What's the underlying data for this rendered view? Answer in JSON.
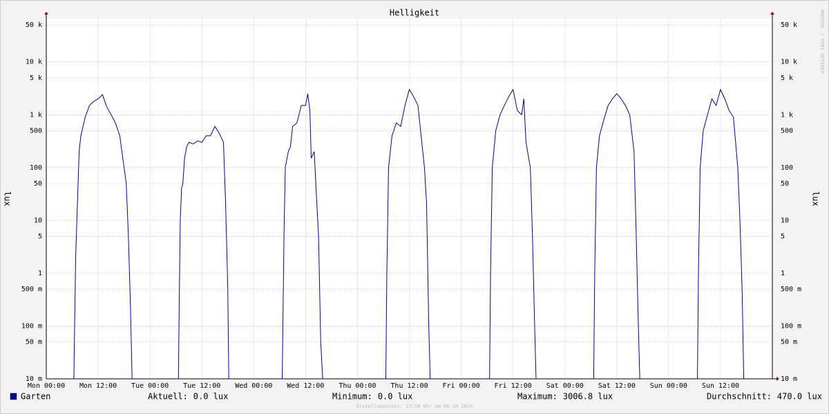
{
  "chart_data": {
    "type": "line",
    "title": "Helligkeit",
    "y_label": "lux",
    "log_scale": true,
    "grid": true,
    "xlim": [
      0,
      168
    ],
    "ylim": [
      0.01,
      66000
    ],
    "xticks": [
      {
        "value": 0,
        "label": "Mon 00:00"
      },
      {
        "value": 12,
        "label": "Mon 12:00"
      },
      {
        "value": 24,
        "label": "Tue 00:00"
      },
      {
        "value": 36,
        "label": "Tue 12:00"
      },
      {
        "value": 48,
        "label": "Wed 00:00"
      },
      {
        "value": 60,
        "label": "Wed 12:00"
      },
      {
        "value": 72,
        "label": "Thu 00:00"
      },
      {
        "value": 84,
        "label": "Thu 12:00"
      },
      {
        "value": 96,
        "label": "Fri 00:00"
      },
      {
        "value": 108,
        "label": "Fri 12:00"
      },
      {
        "value": 120,
        "label": "Sat 00:00"
      },
      {
        "value": 132,
        "label": "Sat 12:00"
      },
      {
        "value": 144,
        "label": "Sun 00:00"
      },
      {
        "value": 156,
        "label": "Sun 12:00"
      }
    ],
    "yticks": [
      {
        "value": 50000,
        "label": "50 k"
      },
      {
        "value": 10000,
        "label": "10 k"
      },
      {
        "value": 5000,
        "label": "5 k"
      },
      {
        "value": 1000,
        "label": "1 k"
      },
      500,
      100,
      50,
      10,
      5,
      1,
      {
        "value": 0.5,
        "label": "500 m"
      },
      {
        "value": 0.1,
        "label": "100 m"
      },
      {
        "value": 0.05,
        "label": "50 m"
      },
      {
        "value": 0.01,
        "label": "10 m"
      }
    ],
    "x": [
      0,
      6.3,
      6.5,
      6.8,
      7.2,
      7.6,
      8,
      8.5,
      9,
      10,
      11,
      12,
      13,
      14,
      15,
      16,
      17,
      18,
      18.5,
      19,
      19.5,
      20,
      30.5,
      30.8,
      31,
      31.3,
      31.6,
      32,
      32.5,
      33,
      34,
      35,
      36,
      37,
      38,
      39,
      40,
      41,
      41.5,
      42,
      42.3,
      54.5,
      54.7,
      55,
      55.3,
      56,
      56.5,
      57,
      58,
      59,
      60,
      60.5,
      61,
      61.3,
      62,
      62.5,
      63,
      63.5,
      64.3,
      78.5,
      78.8,
      79.2,
      80,
      81,
      82,
      83,
      84,
      85,
      86,
      86.5,
      87.5,
      88,
      88.5,
      89,
      102.5,
      102.8,
      103.2,
      104,
      105,
      106,
      107,
      108,
      109,
      110,
      110.5,
      111,
      112,
      112.5,
      113,
      113.5,
      126.6,
      126.9,
      127.3,
      128,
      129,
      130,
      131,
      132,
      133,
      134,
      135,
      136,
      136.5,
      137,
      137.5,
      150.6,
      150.9,
      151.3,
      152,
      153,
      154,
      155,
      156,
      157,
      158,
      159,
      160,
      160.5,
      161,
      161.5,
      168
    ],
    "series": [
      {
        "name": "Garten",
        "color": "#0000a0",
        "values": [
          0,
          0,
          0.05,
          2,
          20,
          200,
          400,
          600,
          900,
          1500,
          1800,
          2000,
          2400,
          1400,
          1000,
          700,
          400,
          100,
          50,
          5,
          0.2,
          0,
          0,
          0.5,
          10,
          40,
          50,
          150,
          250,
          300,
          280,
          320,
          300,
          400,
          400,
          600,
          450,
          300,
          20,
          0.5,
          0,
          0,
          0.05,
          5,
          100,
          200,
          250,
          600,
          700,
          1500,
          1500,
          2500,
          1200,
          150,
          200,
          30,
          5,
          0.05,
          0,
          0,
          1,
          100,
          400,
          700,
          600,
          1500,
          3000,
          2200,
          1500,
          600,
          100,
          20,
          0.1,
          0,
          0,
          1,
          100,
          500,
          1000,
          1500,
          2200,
          3000,
          1200,
          1000,
          2000,
          300,
          100,
          5,
          0.1,
          0,
          0,
          1,
          100,
          400,
          800,
          1500,
          2000,
          2500,
          2000,
          1500,
          1000,
          200,
          5,
          0.1,
          0,
          0,
          1,
          100,
          500,
          1000,
          2000,
          1500,
          3000,
          2000,
          1200,
          900,
          100,
          10,
          0.5,
          0,
          0
        ]
      }
    ],
    "stats": [
      {
        "label": "Aktuell:",
        "value": "0.0 lux"
      },
      {
        "label": "Minimum:",
        "value": "0.0 lux"
      },
      {
        "label": "Maximum:",
        "value": "3006.8 lux"
      },
      {
        "label": "Durchschnitt:",
        "value": "470.0 lux"
      }
    ],
    "footer": "Erstellungszeit: 23:58 Uhr am 06.10.2024",
    "watermark": "RRDTOOL / TOBI OETIKER"
  }
}
